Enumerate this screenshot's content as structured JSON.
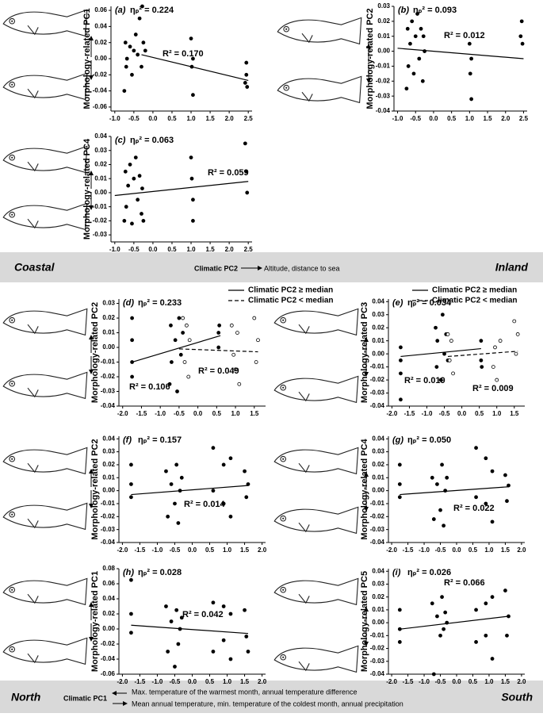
{
  "chart_data": [
    {
      "type": "scatter",
      "panel": "(a)",
      "eta_label": "ηₚ² = 0.224",
      "ylabel": "Morphology-related PC1",
      "xlim": [
        -1.1,
        2.6
      ],
      "xticks": [
        {
          "value": -1,
          "label": "-1.0"
        },
        -0.5,
        {
          "value": 0,
          "label": "0.0"
        },
        0.5,
        {
          "value": 1,
          "label": "1.0"
        },
        1.5,
        {
          "value": 2,
          "label": "2.0"
        },
        2.5
      ],
      "ylim": [
        -0.065,
        0.065
      ],
      "yticks": [
        -0.06,
        -0.04,
        -0.02,
        {
          "value": 0,
          "label": "0.00"
        },
        0.02,
        0.04,
        0.06
      ],
      "series": [
        {
          "color": "#000000",
          "marker": "filled",
          "line_style": "solid",
          "x": [
            -0.75,
            -0.72,
            -0.7,
            -0.68,
            -0.6,
            -0.55,
            -0.5,
            -0.45,
            -0.4,
            -0.35,
            -0.3,
            -0.28,
            -0.25,
            -0.2,
            1.0,
            1.02,
            1.05,
            1.05,
            2.42,
            2.45,
            2.45,
            2.47
          ],
          "y": [
            -0.04,
            0.02,
            -0.01,
            0.0,
            0.015,
            -0.02,
            0.01,
            0.03,
            0.005,
            0.05,
            -0.01,
            0.065,
            0.02,
            0.01,
            0.025,
            -0.01,
            -0.045,
            0.0,
            -0.03,
            -0.02,
            -0.005,
            -0.035
          ],
          "fit_x": [
            -0.3,
            2.5
          ],
          "fit_y": [
            0.005,
            -0.027
          ],
          "r2_label": "R² = 0.170"
        }
      ]
    },
    {
      "type": "scatter",
      "panel": "(b)",
      "eta_label": "ηₚ² = 0.093",
      "ylabel": "Morphology-related PC2",
      "xlim": [
        -1.1,
        2.6
      ],
      "xticks": [
        {
          "value": -1,
          "label": "-1.0"
        },
        -0.5,
        {
          "value": 0,
          "label": "0.0"
        },
        0.5,
        {
          "value": 1,
          "label": "1.0"
        },
        1.5,
        {
          "value": 2,
          "label": "2.0"
        },
        2.5
      ],
      "ylim": [
        -0.04,
        0.03
      ],
      "yticks": [
        -0.04,
        -0.03,
        -0.02,
        -0.01,
        {
          "value": 0,
          "label": "0.00"
        },
        0.01,
        0.02,
        0.03
      ],
      "series": [
        {
          "color": "#000000",
          "marker": "filled",
          "line_style": "solid",
          "x": [
            -0.75,
            -0.72,
            -0.7,
            -0.65,
            -0.6,
            -0.55,
            -0.5,
            -0.45,
            -0.4,
            -0.35,
            -0.3,
            -0.28,
            -0.25,
            1.0,
            1.02,
            1.05,
            1.05,
            2.42,
            2.45,
            2.47
          ],
          "y": [
            -0.025,
            0.015,
            -0.01,
            0.005,
            0.02,
            -0.015,
            0.01,
            0.025,
            -0.005,
            0.015,
            -0.02,
            0.01,
            0.0,
            0.005,
            -0.015,
            -0.032,
            -0.005,
            0.01,
            0.02,
            0.005
          ],
          "fit_x": [
            -1.0,
            2.5
          ],
          "fit_y": [
            0.002,
            -0.005
          ],
          "r2_label": "R² = 0.012"
        }
      ]
    },
    {
      "type": "scatter",
      "panel": "(c)",
      "eta_label": "ηₚ² = 0.063",
      "ylabel": "Morphology-related PC4",
      "xlim": [
        -1.1,
        2.6
      ],
      "xticks": [
        {
          "value": -1,
          "label": "-1.0"
        },
        -0.5,
        {
          "value": 0,
          "label": "0.0"
        },
        0.5,
        {
          "value": 1,
          "label": "1.0"
        },
        1.5,
        {
          "value": 2,
          "label": "2.0"
        },
        2.5
      ],
      "ylim": [
        -0.035,
        0.04
      ],
      "yticks": [
        -0.03,
        -0.02,
        -0.01,
        {
          "value": 0,
          "label": "0.00"
        },
        0.01,
        0.02,
        0.03,
        0.04
      ],
      "series": [
        {
          "color": "#000000",
          "marker": "filled",
          "line_style": "solid",
          "x": [
            -0.75,
            -0.72,
            -0.7,
            -0.65,
            -0.6,
            -0.55,
            -0.5,
            -0.45,
            -0.4,
            -0.35,
            -0.3,
            -0.28,
            -0.25,
            1.0,
            1.02,
            1.05,
            1.05,
            2.42,
            2.45,
            2.47
          ],
          "y": [
            -0.02,
            0.015,
            -0.01,
            0.005,
            0.02,
            -0.022,
            0.01,
            0.025,
            -0.005,
            0.012,
            -0.015,
            0.003,
            -0.02,
            0.025,
            0.01,
            -0.02,
            -0.005,
            0.035,
            0.015,
            0.0
          ],
          "fit_x": [
            -1.0,
            2.5
          ],
          "fit_y": [
            -0.002,
            0.008
          ],
          "r2_label": "R² = 0.059"
        }
      ]
    },
    {
      "type": "scatter",
      "panel": "(d)",
      "eta_label": "ηₚ² = 0.233",
      "ylabel": "Morphology-related PC2",
      "xlim": [
        -2.1,
        1.8
      ],
      "xticks": [
        {
          "value": -2,
          "label": "-2.0"
        },
        -1.5,
        {
          "value": -1,
          "label": "-1.0"
        },
        -0.5,
        {
          "value": 0,
          "label": "0.0"
        },
        0.5,
        {
          "value": 1,
          "label": "1.0"
        },
        1.5
      ],
      "ylim": [
        -0.04,
        0.033
      ],
      "yticks": [
        -0.04,
        -0.03,
        -0.02,
        -0.01,
        {
          "value": 0,
          "label": "0.00"
        },
        0.01,
        0.02,
        0.03
      ],
      "series": [
        {
          "name": "Climatic PC2 ≥ median",
          "color": "#000000",
          "marker": "filled",
          "line_style": "solid",
          "x": [
            -1.75,
            -1.75,
            -1.75,
            -1.75,
            -0.75,
            -0.72,
            -0.7,
            -0.6,
            -0.55,
            -0.5,
            -0.45,
            -0.4,
            0.55,
            0.55,
            0.57
          ],
          "y": [
            0.02,
            -0.01,
            -0.02,
            0.005,
            -0.025,
            0.015,
            -0.01,
            0.005,
            -0.03,
            0.02,
            -0.005,
            0.01,
            0.01,
            0.0,
            0.015
          ],
          "fit_x": [
            -1.75,
            0.6
          ],
          "fit_y": [
            -0.01,
            0.008
          ],
          "r2_label": "R² = 0.106"
        },
        {
          "name": "Climatic PC2 < median",
          "color": "#000000",
          "marker": "open",
          "line_style": "dashed",
          "x": [
            -0.4,
            -0.35,
            -0.3,
            -0.25,
            -0.22,
            0.9,
            0.95,
            1.0,
            1.05,
            1.1,
            1.5,
            1.55,
            1.6
          ],
          "y": [
            0.02,
            -0.01,
            0.015,
            -0.02,
            0.005,
            0.015,
            -0.005,
            -0.015,
            0.01,
            -0.025,
            0.02,
            -0.01,
            0.005
          ],
          "fit_x": [
            -0.5,
            1.6
          ],
          "fit_y": [
            -0.001,
            -0.003
          ],
          "r2_label": "R² = 0.049"
        }
      ]
    },
    {
      "type": "scatter",
      "panel": "(e)",
      "eta_label": "ηₚ² = 0.034",
      "ylabel": "Morphology-related PC3",
      "xlim": [
        -2.1,
        1.8
      ],
      "xticks": [
        {
          "value": -2,
          "label": "-2.0"
        },
        -1.5,
        {
          "value": -1,
          "label": "-1.0"
        },
        -0.5,
        {
          "value": 0,
          "label": "0.0"
        },
        0.5,
        {
          "value": 1,
          "label": "1.0"
        },
        1.5
      ],
      "ylim": [
        -0.04,
        0.042
      ],
      "yticks": [
        -0.04,
        -0.03,
        -0.02,
        -0.01,
        {
          "value": 0,
          "label": "0.00"
        },
        0.01,
        0.02,
        0.03,
        0.04
      ],
      "series": [
        {
          "name": "Climatic PC2 ≥ median",
          "color": "#000000",
          "marker": "filled",
          "line_style": "solid",
          "x": [
            -1.75,
            -1.75,
            -1.75,
            -1.75,
            -0.75,
            -0.72,
            -0.7,
            -0.6,
            -0.55,
            -0.5,
            -0.45,
            -0.4,
            0.55,
            0.55,
            0.57
          ],
          "y": [
            0.005,
            -0.015,
            -0.035,
            -0.005,
            0.02,
            -0.01,
            0.01,
            -0.02,
            0.03,
            0.0,
            0.015,
            -0.005,
            0.01,
            -0.005,
            -0.01
          ],
          "fit_x": [
            -1.75,
            0.55
          ],
          "fit_y": [
            -0.002,
            0.004
          ],
          "r2_label": "R² = 0.019"
        },
        {
          "name": "Climatic PC2 < median",
          "color": "#000000",
          "marker": "open",
          "line_style": "dashed",
          "x": [
            -0.4,
            -0.35,
            -0.3,
            -0.25,
            0.9,
            0.95,
            1.0,
            1.1,
            1.5,
            1.55,
            1.6
          ],
          "y": [
            0.015,
            -0.005,
            0.01,
            -0.015,
            -0.01,
            0.005,
            -0.02,
            0.01,
            0.025,
            0.0,
            0.015
          ],
          "fit_x": [
            -0.4,
            1.6
          ],
          "fit_y": [
            -0.002,
            0.002
          ],
          "r2_label": "R² = 0.009"
        }
      ]
    },
    {
      "type": "scatter",
      "panel": "(f)",
      "eta_label": "ηₚ² = 0.157",
      "ylabel": "Morphology-related PC2",
      "xlim": [
        -2.1,
        2.1
      ],
      "xticks": [
        {
          "value": -2,
          "label": "-2.0"
        },
        -1.5,
        {
          "value": -1,
          "label": "-1.0"
        },
        -0.5,
        {
          "value": 0,
          "label": "0.0"
        },
        0.5,
        {
          "value": 1,
          "label": "1.0"
        },
        1.5,
        {
          "value": 2,
          "label": "2.0"
        }
      ],
      "ylim": [
        -0.04,
        0.042
      ],
      "yticks": [
        -0.04,
        -0.03,
        -0.02,
        -0.01,
        {
          "value": 0,
          "label": "0.00"
        },
        0.01,
        0.02,
        0.03,
        0.04
      ],
      "series": [
        {
          "color": "#000000",
          "marker": "filled",
          "line_style": "solid",
          "x": [
            -1.75,
            -1.75,
            -1.75,
            -0.75,
            -0.7,
            -0.6,
            -0.5,
            -0.45,
            -0.4,
            -0.35,
            -0.3,
            0.6,
            0.6,
            0.9,
            0.9,
            1.1,
            1.1,
            1.5,
            1.55,
            1.6
          ],
          "y": [
            0.02,
            0.005,
            -0.005,
            0.015,
            -0.02,
            0.005,
            -0.01,
            0.02,
            -0.025,
            0.0,
            0.01,
            0.033,
            0.0,
            0.02,
            -0.01,
            0.025,
            -0.02,
            0.015,
            -0.005,
            0.005
          ],
          "fit_x": [
            -1.75,
            1.6
          ],
          "fit_y": [
            -0.003,
            0.004
          ],
          "r2_label": "R² = 0.014"
        }
      ]
    },
    {
      "type": "scatter",
      "panel": "(g)",
      "eta_label": "ηₚ² = 0.050",
      "ylabel": "Morphology-related PC4",
      "xlim": [
        -2.1,
        2.1
      ],
      "xticks": [
        {
          "value": -2,
          "label": "-2.0"
        },
        -1.5,
        {
          "value": -1,
          "label": "-1.0"
        },
        -0.5,
        {
          "value": 0,
          "label": "0.0"
        },
        0.5,
        {
          "value": 1,
          "label": "1.0"
        },
        1.5,
        {
          "value": 2,
          "label": "2.0"
        }
      ],
      "ylim": [
        -0.04,
        0.042
      ],
      "yticks": [
        -0.04,
        -0.03,
        -0.02,
        -0.01,
        {
          "value": 0,
          "label": "0.00"
        },
        0.01,
        0.02,
        0.03,
        0.04
      ],
      "series": [
        {
          "color": "#000000",
          "marker": "filled",
          "line_style": "solid",
          "x": [
            -1.75,
            -1.75,
            -1.75,
            -0.75,
            -0.7,
            -0.6,
            -0.5,
            -0.45,
            -0.4,
            -0.35,
            -0.3,
            0.6,
            0.6,
            0.9,
            0.9,
            1.1,
            1.1,
            1.5,
            1.55,
            1.6
          ],
          "y": [
            0.02,
            0.005,
            -0.005,
            0.01,
            -0.022,
            0.005,
            -0.015,
            0.02,
            -0.027,
            0.0,
            0.01,
            0.033,
            -0.005,
            0.025,
            -0.01,
            0.015,
            -0.024,
            0.012,
            -0.008,
            0.004
          ],
          "fit_x": [
            -1.75,
            1.6
          ],
          "fit_y": [
            -0.003,
            0.003
          ],
          "r2_label": "R² = 0.022"
        }
      ]
    },
    {
      "type": "scatter",
      "panel": "(h)",
      "eta_label": "ηₚ² = 0.028",
      "ylabel": "Morphology-related PC1",
      "xlim": [
        -2.1,
        2.1
      ],
      "xticks": [
        {
          "value": -2,
          "label": "-2.0"
        },
        -1.5,
        {
          "value": -1,
          "label": "-1.0"
        },
        -0.5,
        {
          "value": 0,
          "label": "0.0"
        },
        0.5,
        {
          "value": 1,
          "label": "1.0"
        },
        1.5,
        {
          "value": 2,
          "label": "2.0"
        }
      ],
      "ylim": [
        -0.06,
        0.08
      ],
      "yticks": [
        -0.06,
        -0.04,
        -0.02,
        {
          "value": 0,
          "label": "0.00"
        },
        0.02,
        0.04,
        0.06,
        0.08
      ],
      "series": [
        {
          "color": "#000000",
          "marker": "filled",
          "line_style": "solid",
          "x": [
            -1.75,
            -1.75,
            -1.75,
            -0.75,
            -0.7,
            -0.6,
            -0.5,
            -0.45,
            -0.4,
            -0.35,
            -0.3,
            0.6,
            0.6,
            0.9,
            0.9,
            1.1,
            1.1,
            1.5,
            1.55,
            1.6
          ],
          "y": [
            0.065,
            0.02,
            -0.005,
            0.03,
            -0.03,
            0.01,
            -0.05,
            0.025,
            -0.02,
            0.0,
            0.015,
            0.035,
            -0.03,
            0.03,
            -0.015,
            0.02,
            -0.04,
            0.025,
            -0.01,
            -0.03
          ],
          "fit_x": [
            -1.75,
            1.6
          ],
          "fit_y": [
            0.005,
            -0.006
          ],
          "r2_label": "R² = 0.042"
        }
      ]
    },
    {
      "type": "scatter",
      "panel": "(i)",
      "eta_label": "ηₚ² = 0.026",
      "ylabel": "Morphology-related PC5",
      "xlim": [
        -2.1,
        2.1
      ],
      "xticks": [
        {
          "value": -2,
          "label": "-2.0"
        },
        -1.5,
        {
          "value": -1,
          "label": "-1.0"
        },
        -0.5,
        {
          "value": 0,
          "label": "0.0"
        },
        0.5,
        {
          "value": 1,
          "label": "1.0"
        },
        1.5,
        {
          "value": 2,
          "label": "2.0"
        }
      ],
      "ylim": [
        -0.04,
        0.042
      ],
      "yticks": [
        -0.04,
        -0.03,
        -0.02,
        -0.01,
        {
          "value": 0,
          "label": "0.00"
        },
        0.01,
        0.02,
        0.03,
        0.04
      ],
      "series": [
        {
          "color": "#000000",
          "marker": "filled",
          "line_style": "solid",
          "x": [
            -1.75,
            -1.75,
            -1.75,
            -0.75,
            -0.7,
            -0.6,
            -0.5,
            -0.45,
            -0.4,
            -0.35,
            -0.3,
            0.6,
            0.6,
            0.9,
            0.9,
            1.1,
            1.1,
            1.5,
            1.55,
            1.6
          ],
          "y": [
            0.01,
            -0.005,
            -0.015,
            0.015,
            -0.04,
            0.005,
            -0.01,
            0.02,
            -0.005,
            0.008,
            0.0,
            0.01,
            -0.015,
            0.015,
            -0.01,
            0.02,
            -0.028,
            0.025,
            -0.01,
            0.005
          ],
          "fit_x": [
            -1.75,
            1.6
          ],
          "fit_y": [
            -0.005,
            0.005
          ],
          "r2_label": "R² = 0.066"
        }
      ]
    }
  ],
  "banners": {
    "top": {
      "left": "Coastal",
      "axis": "Climatic PC2",
      "note": "Altitude, distance to sea",
      "right": "Inland"
    },
    "bottom": {
      "left": "North",
      "axis": "Climatic PC1",
      "note_up": "Max. temperature of the warmest month, annual temperature difference",
      "note_down": "Mean annual temperature, min. temperature of the coldest month, annual precipitation",
      "right": "South"
    }
  }
}
